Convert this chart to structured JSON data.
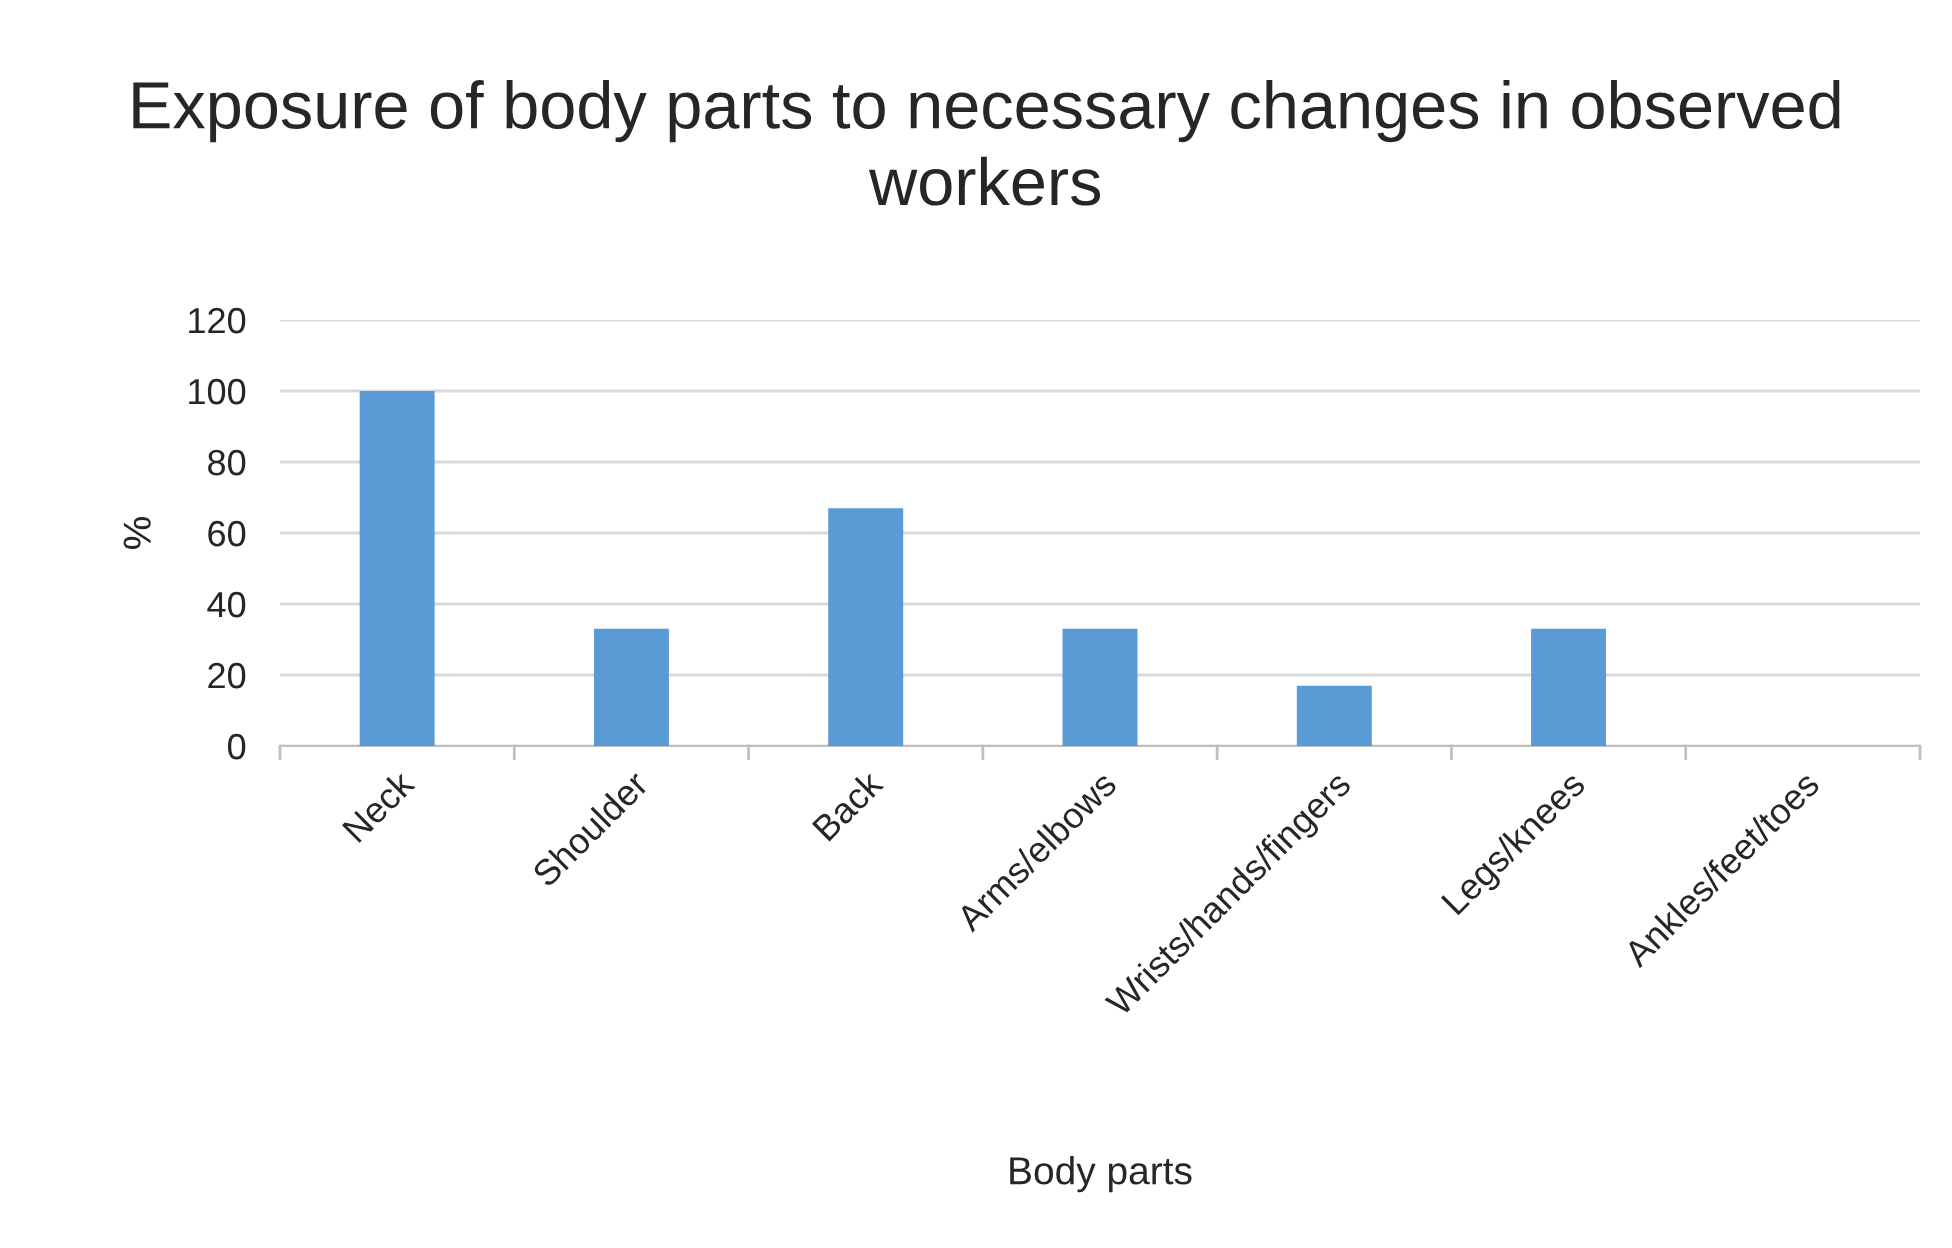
{
  "chart_data": {
    "type": "bar",
    "title": "Exposure of body parts to necessary changes in observed workers",
    "xlabel": "Body parts",
    "ylabel": "%",
    "categories": [
      "Neck",
      "Shoulder",
      "Back",
      "Arms/elbows",
      "Wrists/hands/fingers",
      "Legs/knees",
      "Ankles/feet/toes"
    ],
    "values": [
      100,
      33,
      67,
      33,
      17,
      33,
      0
    ],
    "color": "#5b9bd5",
    "ylim": [
      0,
      120
    ],
    "yticks": [
      0,
      20,
      40,
      60,
      80,
      100,
      120
    ],
    "grid": "y",
    "legend": false
  }
}
